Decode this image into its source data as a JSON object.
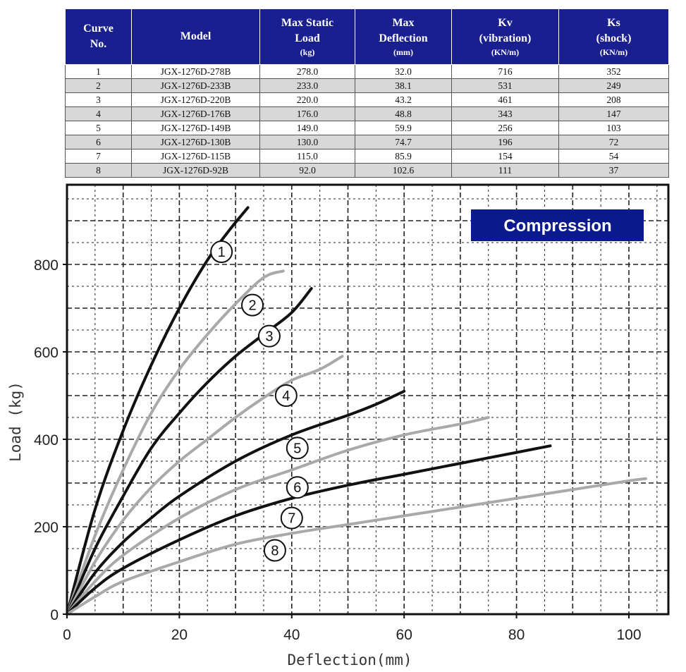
{
  "table": {
    "headers": [
      {
        "lines": [
          "Curve",
          "No."
        ],
        "unit": ""
      },
      {
        "lines": [
          "Model"
        ],
        "unit": ""
      },
      {
        "lines": [
          "Max Static",
          "Load"
        ],
        "unit": "(kg)"
      },
      {
        "lines": [
          "Max",
          "Deflection"
        ],
        "unit": "(mm)"
      },
      {
        "lines": [
          "Kv",
          "(vibration)"
        ],
        "unit": "(KN/m)"
      },
      {
        "lines": [
          "Ks",
          "(shock)"
        ],
        "unit": "(KN/m)"
      }
    ],
    "rows": [
      [
        "1",
        "JGX-1276D-278B",
        "278.0",
        "32.0",
        "716",
        "352"
      ],
      [
        "2",
        "JGX-1276D-233B",
        "233.0",
        "38.1",
        "531",
        "249"
      ],
      [
        "3",
        "JGX-1276D-220B",
        "220.0",
        "43.2",
        "461",
        "208"
      ],
      [
        "4",
        "JGX-1276D-176B",
        "176.0",
        "48.8",
        "343",
        "147"
      ],
      [
        "5",
        "JGX-1276D-149B",
        "149.0",
        "59.9",
        "256",
        "103"
      ],
      [
        "6",
        "JGX-1276D-130B",
        "130.0",
        "74.7",
        "196",
        "72"
      ],
      [
        "7",
        "JGX-1276D-115B",
        "115.0",
        "85.9",
        "154",
        "54"
      ],
      [
        "8",
        "JGX-1276D-92B",
        "92.0",
        "102.6",
        "111",
        "37"
      ]
    ]
  },
  "chart_data": {
    "type": "line",
    "badge": "Compression",
    "xlabel": "Deflection(mm)",
    "ylabel": "Load (kg)",
    "xlim": [
      0,
      107
    ],
    "ylim": [
      0,
      980
    ],
    "xticks": [
      0,
      20,
      40,
      60,
      80,
      100
    ],
    "yticks": [
      0,
      200,
      400,
      600,
      800
    ],
    "grid": true,
    "colors": {
      "dark": "#111111",
      "light": "#a9a9a9",
      "badge_bg": "#0a1a8c",
      "badge_text": "#ffffff"
    },
    "series": [
      {
        "name": "1",
        "style": "dark",
        "points": [
          [
            0,
            0
          ],
          [
            5,
            240
          ],
          [
            10,
            420
          ],
          [
            15,
            570
          ],
          [
            20,
            700
          ],
          [
            25,
            810
          ],
          [
            29,
            880
          ],
          [
            32.2,
            930
          ]
        ],
        "label_at": [
          27.5,
          829
        ]
      },
      {
        "name": "2",
        "style": "light",
        "points": [
          [
            0,
            0
          ],
          [
            5,
            180
          ],
          [
            10,
            330
          ],
          [
            15,
            460
          ],
          [
            20,
            560
          ],
          [
            25,
            640
          ],
          [
            30,
            710
          ],
          [
            35,
            770
          ],
          [
            38.5,
            785
          ]
        ],
        "label_at": [
          33,
          707
        ]
      },
      {
        "name": "3",
        "style": "dark",
        "points": [
          [
            0,
            0
          ],
          [
            5,
            150
          ],
          [
            10,
            270
          ],
          [
            15,
            380
          ],
          [
            20,
            460
          ],
          [
            25,
            530
          ],
          [
            30,
            590
          ],
          [
            35,
            640
          ],
          [
            40,
            690
          ],
          [
            43.5,
            745
          ]
        ],
        "label_at": [
          36,
          636
        ]
      },
      {
        "name": "4",
        "style": "light",
        "points": [
          [
            0,
            0
          ],
          [
            5,
            120
          ],
          [
            10,
            215
          ],
          [
            15,
            290
          ],
          [
            20,
            350
          ],
          [
            25,
            400
          ],
          [
            30,
            450
          ],
          [
            35,
            495
          ],
          [
            40,
            535
          ],
          [
            45,
            560
          ],
          [
            49,
            590
          ]
        ],
        "label_at": [
          39,
          500
        ]
      },
      {
        "name": "5",
        "style": "dark",
        "points": [
          [
            0,
            0
          ],
          [
            5,
            95
          ],
          [
            10,
            165
          ],
          [
            15,
            220
          ],
          [
            20,
            270
          ],
          [
            30,
            350
          ],
          [
            40,
            410
          ],
          [
            50,
            455
          ],
          [
            55,
            480
          ],
          [
            60,
            510
          ]
        ],
        "label_at": [
          41,
          380
        ]
      },
      {
        "name": "6",
        "style": "light",
        "points": [
          [
            0,
            0
          ],
          [
            5,
            75
          ],
          [
            10,
            135
          ],
          [
            20,
            220
          ],
          [
            30,
            285
          ],
          [
            40,
            330
          ],
          [
            50,
            375
          ],
          [
            60,
            410
          ],
          [
            70,
            435
          ],
          [
            75,
            450
          ]
        ],
        "label_at": [
          41,
          290
        ]
      },
      {
        "name": "7",
        "style": "dark",
        "points": [
          [
            0,
            0
          ],
          [
            5,
            60
          ],
          [
            10,
            105
          ],
          [
            20,
            170
          ],
          [
            30,
            225
          ],
          [
            40,
            265
          ],
          [
            50,
            295
          ],
          [
            60,
            320
          ],
          [
            70,
            345
          ],
          [
            80,
            370
          ],
          [
            86,
            385
          ]
        ],
        "label_at": [
          40,
          220
        ]
      },
      {
        "name": "8",
        "style": "light",
        "points": [
          [
            0,
            0
          ],
          [
            5,
            40
          ],
          [
            10,
            75
          ],
          [
            20,
            120
          ],
          [
            30,
            160
          ],
          [
            40,
            185
          ],
          [
            50,
            205
          ],
          [
            60,
            225
          ],
          [
            70,
            245
          ],
          [
            80,
            265
          ],
          [
            90,
            285
          ],
          [
            100,
            305
          ],
          [
            103,
            310
          ]
        ],
        "label_at": [
          37,
          146
        ]
      }
    ]
  }
}
